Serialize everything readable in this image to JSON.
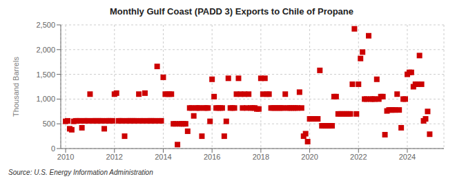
{
  "chart_data": {
    "type": "scatter",
    "title": "Monthly Gulf Coast (PADD 3) Exports to Chile of Propane",
    "ylabel": "Thousand Barrels",
    "annotations": [
      "Source: U.S. Energy Information Administration"
    ],
    "color": "#cc0000",
    "marker": "square",
    "grid": true,
    "xlim": [
      2009.8,
      2025.5
    ],
    "xticks": [
      2010,
      2012,
      2014,
      2016,
      2018,
      2020,
      2022,
      2024
    ],
    "ylim": [
      0,
      2500
    ],
    "yticks": [
      0,
      500,
      {
        "value": 1000,
        "label": "1,000"
      },
      {
        "value": 1500,
        "label": "1,500"
      },
      {
        "value": 2000,
        "label": "2,000"
      },
      {
        "value": 2500,
        "label": "2,500"
      }
    ],
    "x": [
      2010.0,
      2010.0833333333333,
      2010.1666666666667,
      2010.25,
      2010.3333333333333,
      2010.4166666666667,
      2010.5,
      2010.5833333333333,
      2010.6666666666667,
      2010.75,
      2010.8333333333333,
      2010.9166666666667,
      2011.0,
      2011.0833333333333,
      2011.1666666666667,
      2011.25,
      2011.3333333333333,
      2011.4166666666667,
      2011.5,
      2011.5833333333333,
      2011.6666666666667,
      2011.75,
      2011.8333333333333,
      2011.9166666666667,
      2012.0,
      2012.0833333333333,
      2012.1666666666667,
      2012.25,
      2012.3333333333333,
      2012.4166666666667,
      2012.5,
      2012.5833333333333,
      2012.6666666666667,
      2012.75,
      2012.8333333333333,
      2012.9166666666667,
      2013.0,
      2013.0833333333333,
      2013.1666666666667,
      2013.25,
      2013.3333333333333,
      2013.4166666666667,
      2013.5,
      2013.5833333333333,
      2013.6666666666667,
      2013.75,
      2013.8333333333333,
      2013.9166666666667,
      2014.0,
      2014.0833333333333,
      2014.1666666666667,
      2014.25,
      2014.3333333333333,
      2014.4166666666667,
      2014.5,
      2014.5833333333333,
      2014.6666666666667,
      2014.75,
      2014.8333333333333,
      2014.9166666666667,
      2015.0,
      2015.0833333333333,
      2015.1666666666667,
      2015.25,
      2015.3333333333333,
      2015.4166666666667,
      2015.5,
      2015.5833333333333,
      2015.6666666666667,
      2015.75,
      2015.8333333333333,
      2015.9166666666667,
      2016.0,
      2016.0833333333333,
      2016.1666666666667,
      2016.25,
      2016.3333333333333,
      2016.4166666666667,
      2016.5,
      2016.5833333333333,
      2016.6666666666667,
      2016.75,
      2016.8333333333333,
      2016.9166666666667,
      2017.0,
      2017.0833333333333,
      2017.1666666666667,
      2017.25,
      2017.3333333333333,
      2017.4166666666667,
      2017.5,
      2017.5833333333333,
      2017.6666666666667,
      2017.75,
      2017.8333333333333,
      2017.9166666666667,
      2018.0,
      2018.0833333333333,
      2018.1666666666667,
      2018.25,
      2018.3333333333333,
      2018.4166666666667,
      2018.5,
      2018.5833333333333,
      2018.6666666666667,
      2018.75,
      2018.8333333333333,
      2018.9166666666667,
      2019.0,
      2019.0833333333333,
      2019.1666666666667,
      2019.25,
      2019.3333333333333,
      2019.4166666666667,
      2019.5,
      2019.5833333333333,
      2019.6666666666667,
      2019.75,
      2019.8333333333333,
      2019.9166666666667,
      2020.0,
      2020.0833333333333,
      2020.1666666666667,
      2020.25,
      2020.3333333333333,
      2020.4166666666667,
      2020.5,
      2020.5833333333333,
      2020.6666666666667,
      2020.75,
      2020.8333333333333,
      2020.9166666666667,
      2021.0,
      2021.0833333333333,
      2021.1666666666667,
      2021.25,
      2021.3333333333333,
      2021.4166666666667,
      2021.5,
      2021.5833333333333,
      2021.6666666666667,
      2021.75,
      2021.8333333333333,
      2021.9166666666667,
      2022.0,
      2022.0833333333333,
      2022.1666666666667,
      2022.25,
      2022.3333333333333,
      2022.4166666666667,
      2022.5,
      2022.5833333333333,
      2022.6666666666667,
      2022.75,
      2022.8333333333333,
      2022.9166666666667,
      2023.0,
      2023.0833333333333,
      2023.1666666666667,
      2023.25,
      2023.3333333333333,
      2023.4166666666667,
      2023.5,
      2023.5833333333333,
      2023.6666666666667,
      2023.75,
      2023.8333333333333,
      2023.9166666666667,
      2024.0,
      2024.0833333333333,
      2024.1666666666667,
      2024.25,
      2024.3333333333333,
      2024.4166666666667,
      2024.5,
      2024.5833333333333,
      2024.6666666666667,
      2024.75,
      2024.8333333333333,
      2024.9166666666667
    ],
    "values": [
      550,
      560,
      400,
      380,
      550,
      560,
      560,
      560,
      420,
      560,
      560,
      560,
      1100,
      560,
      560,
      560,
      560,
      560,
      560,
      400,
      560,
      560,
      560,
      560,
      1100,
      1120,
      560,
      560,
      560,
      250,
      560,
      560,
      560,
      560,
      560,
      560,
      1100,
      560,
      560,
      1120,
      560,
      560,
      560,
      560,
      560,
      1660,
      560,
      560,
      1440,
      1100,
      1100,
      1100,
      1100,
      500,
      500,
      80,
      500,
      500,
      500,
      500,
      350,
      820,
      820,
      660,
      820,
      820,
      820,
      250,
      820,
      820,
      820,
      550,
      1400,
      1050,
      820,
      820,
      820,
      820,
      250,
      550,
      1420,
      820,
      820,
      820,
      1100,
      1420,
      1100,
      820,
      1100,
      820,
      1100,
      820,
      820,
      820,
      800,
      800,
      1420,
      1100,
      1420,
      1100,
      1100,
      820,
      820,
      820,
      820,
      820,
      820,
      820,
      1100,
      820,
      820,
      820,
      820,
      820,
      820,
      1140,
      820,
      250,
      300,
      140,
      600,
      600,
      600,
      600,
      600,
      1580,
      460,
      460,
      460,
      460,
      460,
      460,
      1050,
      1050,
      700,
      700,
      700,
      700,
      700,
      700,
      700,
      1300,
      2420,
      700,
      1300,
      1820,
      1950,
      1000,
      1000,
      2280,
      1000,
      1000,
      1000,
      1400,
      1000,
      1050,
      1050,
      280,
      760,
      780,
      780,
      780,
      780,
      1100,
      780,
      420,
      1000,
      1000,
      1500,
      1540,
      1540,
      1250,
      1300,
      1300,
      1880,
      1300,
      560,
      600,
      750,
      290
    ]
  }
}
